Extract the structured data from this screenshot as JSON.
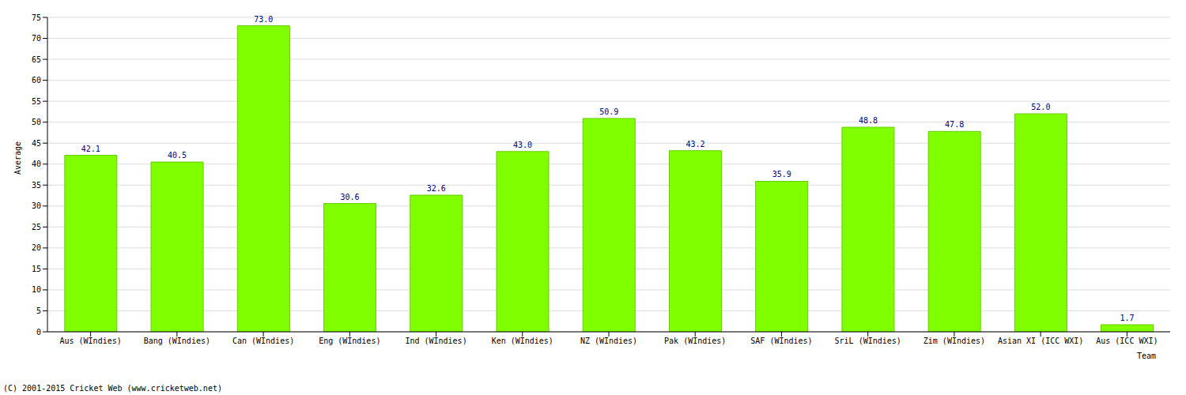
{
  "chart_data": {
    "type": "bar",
    "x_label": "Team",
    "y_label": "Average",
    "categories": [
      "Aus (WIndies)",
      "Bang (WIndies)",
      "Can (WIndies)",
      "Eng (WIndies)",
      "Ind (WIndies)",
      "Ken (WIndies)",
      "NZ (WIndies)",
      "Pak (WIndies)",
      "SAF (WIndies)",
      "SriL (WIndies)",
      "Zim (WIndies)",
      "Asian XI (ICC WXI)",
      "Aus (ICC WXI)"
    ],
    "values": [
      42.1,
      40.5,
      73.0,
      30.6,
      32.6,
      43.0,
      50.9,
      43.2,
      35.9,
      48.8,
      47.8,
      52.0,
      1.7
    ],
    "value_labels": [
      "42.1",
      "40.5",
      "73.0",
      "30.6",
      "32.6",
      "43.0",
      "50.9",
      "43.2",
      "35.9",
      "48.8",
      "47.8",
      "52.0",
      "1.7"
    ],
    "color": "#80ff00",
    "ylim": [
      0,
      75
    ],
    "yticks": [
      0,
      5,
      10,
      15,
      20,
      25,
      30,
      35,
      40,
      45,
      50,
      55,
      60,
      65,
      70,
      75
    ],
    "grid": true,
    "data_labels": true,
    "annotations": [
      "(C) 2001-2015 Cricket Web (www.cricketweb.net)"
    ]
  }
}
